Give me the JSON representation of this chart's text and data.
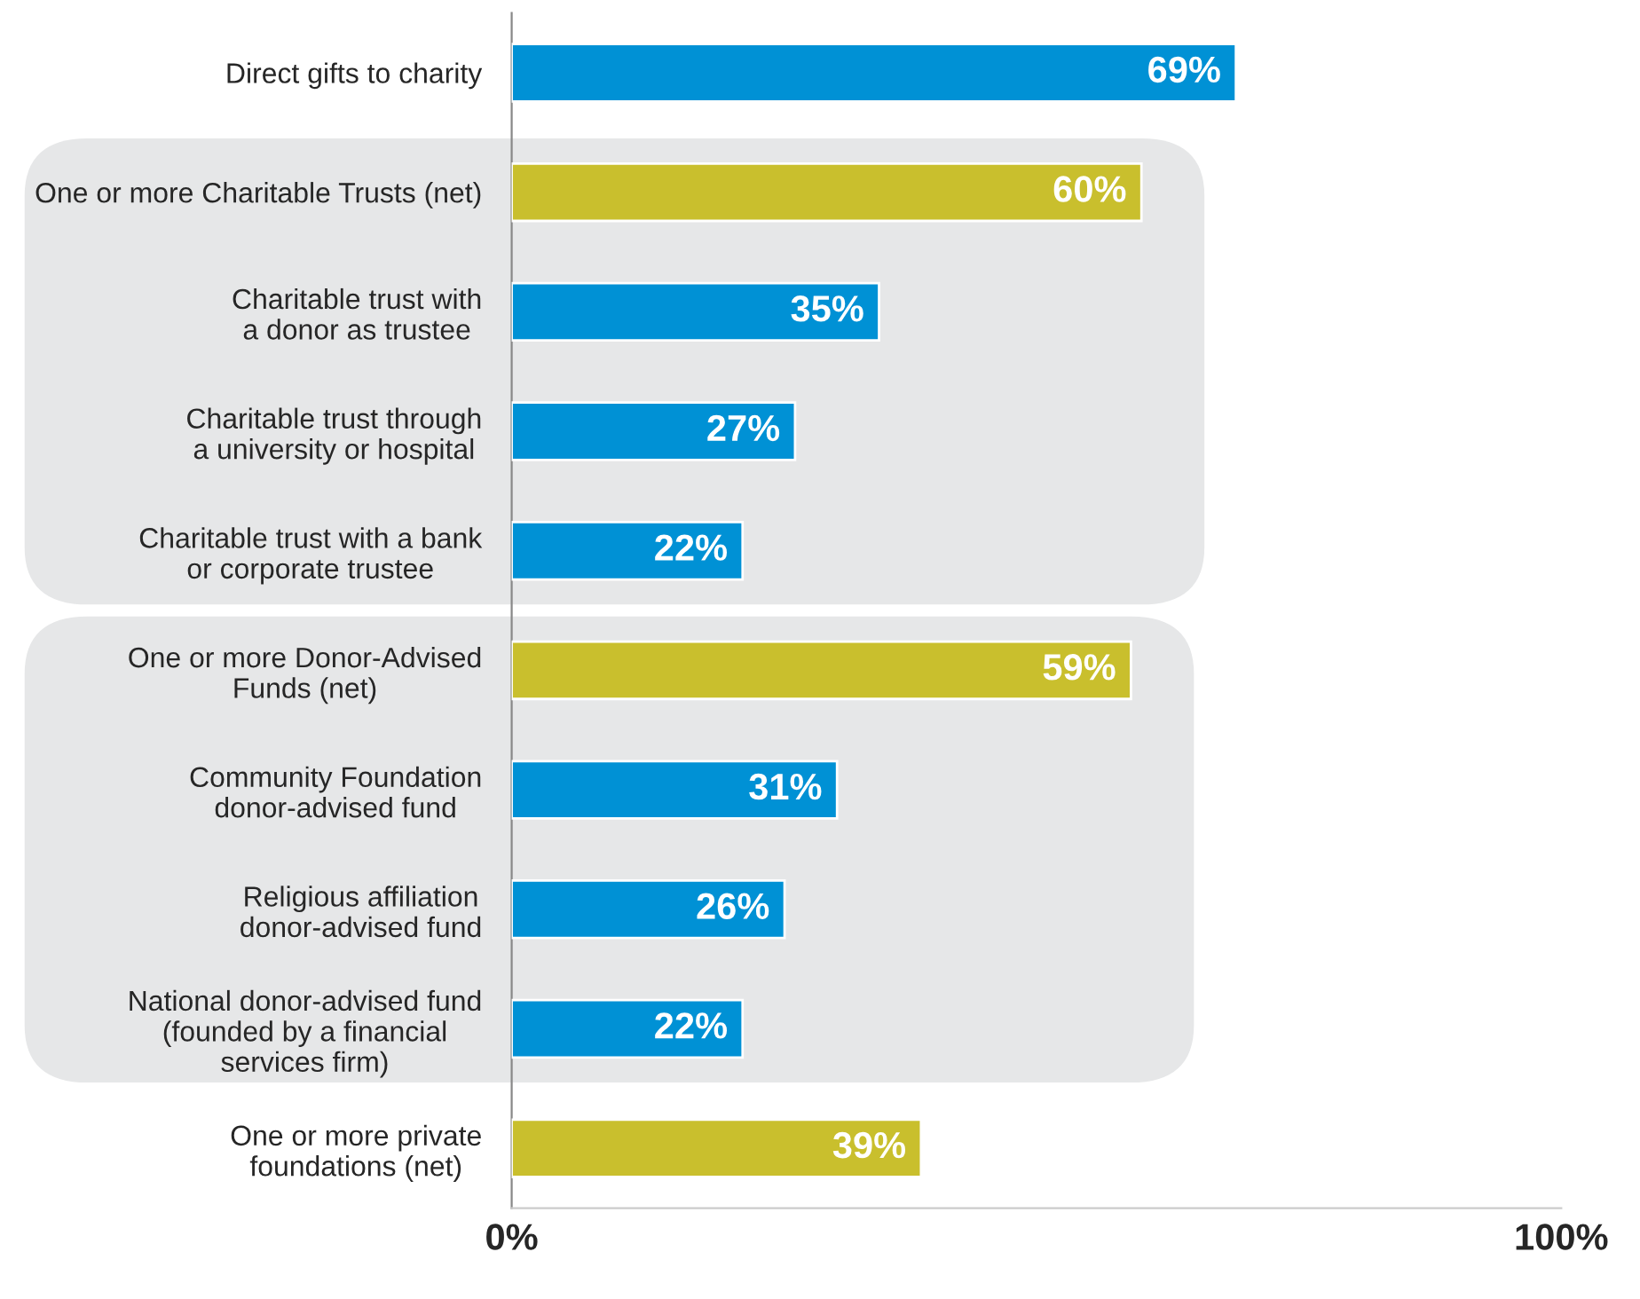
{
  "chart_data": {
    "type": "bar",
    "orientation": "horizontal",
    "categories": [
      "Direct gifts to charity",
      "One or more Charitable Trusts (net)",
      "Charitable trust with\na donor as trustee",
      "Charitable trust through\na university or hospital",
      "Charitable trust with a bank\nor corporate trustee",
      "One or more Donor-Advised\nFunds (net)",
      "Community Foundation\ndonor-advised fund",
      "Religious affiliation\ndonor-advised fund",
      "National donor-advised fund\n(founded by a financial\nservices firm)",
      "One or more private\nfoundations (net)"
    ],
    "values": [
      69,
      60,
      35,
      27,
      22,
      59,
      31,
      26,
      22,
      39
    ],
    "colors": [
      "#0091d5",
      "#c9bf2d",
      "#0091d5",
      "#0091d5",
      "#0091d5",
      "#c9bf2d",
      "#0091d5",
      "#0091d5",
      "#0091d5",
      "#c9bf2d"
    ],
    "value_labels": [
      "69%",
      "60%",
      "35%",
      "27%",
      "22%",
      "59%",
      "31%",
      "26%",
      "22%",
      "39%"
    ],
    "xlim": [
      0,
      100
    ],
    "xticks": [
      {
        "value": 0,
        "label": "0%"
      },
      {
        "value": 100,
        "label": "100%"
      }
    ],
    "grid": false,
    "legend": false
  }
}
